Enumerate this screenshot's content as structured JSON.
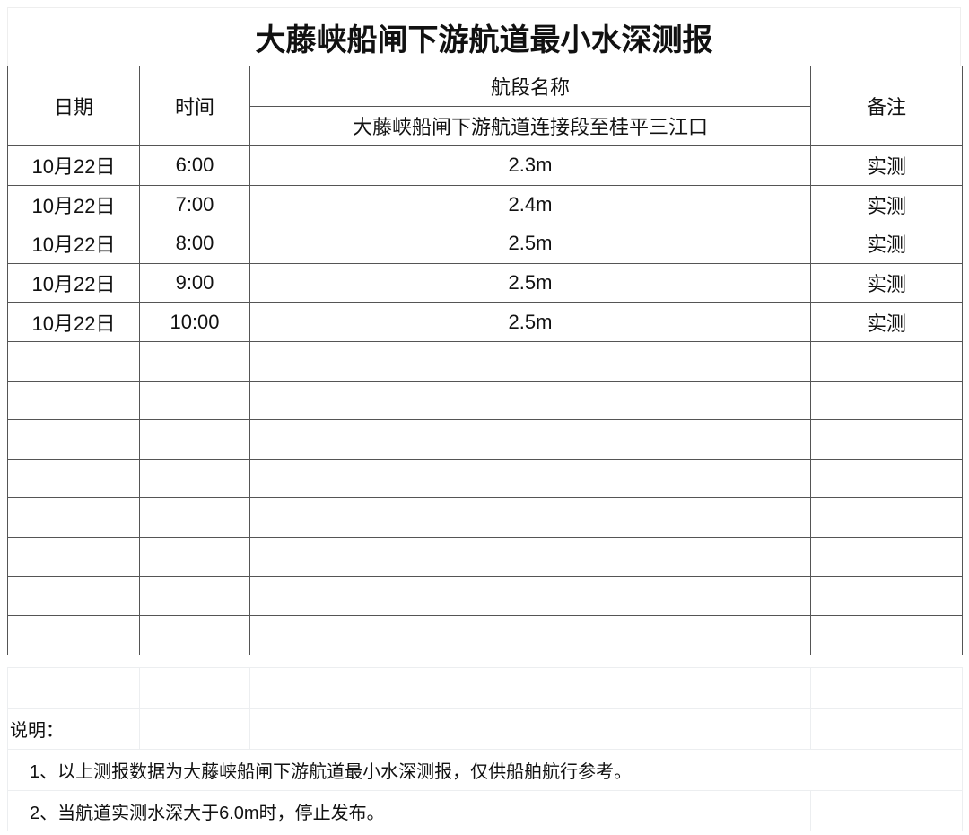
{
  "title": "大藤峡船闸下游航道最小水深测报",
  "headers": {
    "date": "日期",
    "time": "时间",
    "section": "航段名称",
    "section_name": "大藤峡船闸下游航道连接段至桂平三江口",
    "remark": "备注"
  },
  "rows": [
    {
      "date": "10月22日",
      "time": "6:00",
      "depth": "2.3m",
      "remark": "实测"
    },
    {
      "date": "10月22日",
      "time": "7:00",
      "depth": "2.4m",
      "remark": "实测"
    },
    {
      "date": "10月22日",
      "time": "8:00",
      "depth": "2.5m",
      "remark": "实测"
    },
    {
      "date": "10月22日",
      "time": "9:00",
      "depth": "2.5m",
      "remark": "实测"
    },
    {
      "date": "10月22日",
      "time": "10:00",
      "depth": "2.5m",
      "remark": "实测"
    }
  ],
  "notes": {
    "label": "说明：",
    "items": [
      "1、以上测报数据为大藤峡船闸下游航道最小水深测报，仅供船舶航行参考。",
      "2、当航道实测水深大于6.0m时，停止发布。"
    ]
  }
}
